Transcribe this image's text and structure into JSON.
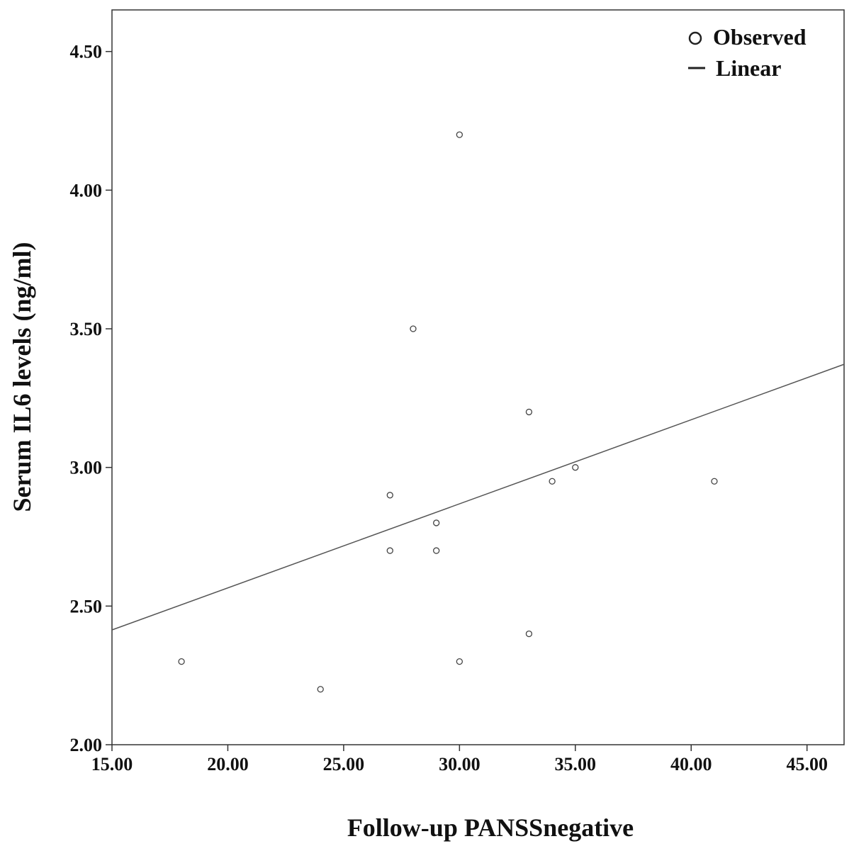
{
  "chart_data": {
    "type": "scatter",
    "xlabel": "Follow-up PANSSnegative",
    "ylabel": "Serum IL6 levels (ng/ml)",
    "xlim": [
      15,
      46.6
    ],
    "ylim": [
      2.0,
      4.65
    ],
    "xticks": [
      "15.00",
      "20.00",
      "25.00",
      "30.00",
      "35.00",
      "40.00",
      "45.00"
    ],
    "yticks": [
      "2.00",
      "2.50",
      "3.00",
      "3.50",
      "4.00",
      "4.50"
    ],
    "legend": {
      "placement": "top-right",
      "observed_label": "Observed",
      "linear_label": "Linear"
    },
    "points": [
      {
        "x": 18,
        "y": 2.3
      },
      {
        "x": 24,
        "y": 2.2
      },
      {
        "x": 27,
        "y": 2.9
      },
      {
        "x": 27,
        "y": 2.7
      },
      {
        "x": 28,
        "y": 3.5
      },
      {
        "x": 29,
        "y": 2.8
      },
      {
        "x": 29,
        "y": 2.7
      },
      {
        "x": 30,
        "y": 4.2
      },
      {
        "x": 30,
        "y": 2.3
      },
      {
        "x": 33,
        "y": 3.2
      },
      {
        "x": 33,
        "y": 2.4
      },
      {
        "x": 34,
        "y": 2.95
      },
      {
        "x": 35,
        "y": 3.0
      },
      {
        "x": 41,
        "y": 2.95
      }
    ],
    "fit_line": {
      "x": [
        15,
        46.6
      ],
      "y": [
        2.414,
        3.372
      ]
    },
    "grid": false,
    "colors": {
      "points": "#444444",
      "line": "#555555",
      "axes": "#333333"
    }
  }
}
